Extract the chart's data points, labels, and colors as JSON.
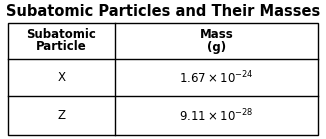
{
  "title": "Subatomic Particles and Their Masses",
  "col1_header_line1": "Subatomic",
  "col1_header_line2": "Particle",
  "col2_header_line1": "Mass",
  "col2_header_line2": "(g)",
  "rows": [
    {
      "particle": "X",
      "mass": "$1.67 \\times 10^{-24}$"
    },
    {
      "particle": "Z",
      "mass": "$9.11 \\times 10^{-28}$"
    }
  ],
  "bg_color": "#ffffff",
  "title_fontsize": 10.5,
  "header_fontsize": 8.5,
  "cell_fontsize": 8.5,
  "border_color": "#000000",
  "border_lw": 1.0
}
